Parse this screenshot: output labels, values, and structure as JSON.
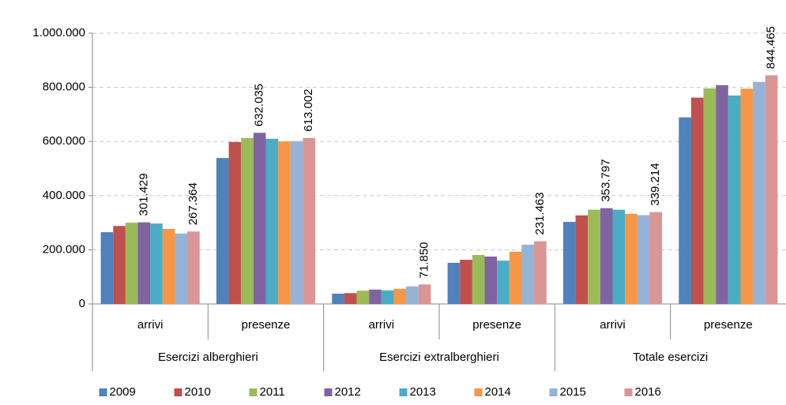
{
  "chart_data": {
    "type": "bar",
    "category_groups": [
      {
        "name": "Esercizi alberghieri",
        "categories": [
          "arrivi",
          "presenze"
        ]
      },
      {
        "name": "Esercizi extralberghieri",
        "categories": [
          "arrivi",
          "presenze"
        ]
      },
      {
        "name": "Totale esercizi",
        "categories": [
          "arrivi",
          "presenze"
        ]
      }
    ],
    "series": [
      {
        "name": "2009",
        "color": "#4f81bd",
        "values": [
          265000,
          539000,
          38000,
          152000,
          303000,
          689000
        ]
      },
      {
        "name": "2010",
        "color": "#c0504d",
        "values": [
          288000,
          598000,
          40000,
          163000,
          327000,
          762000
        ]
      },
      {
        "name": "2011",
        "color": "#9bbb59",
        "values": [
          300000,
          613000,
          49000,
          181000,
          348000,
          796000
        ]
      },
      {
        "name": "2012",
        "color": "#8064a2",
        "values": [
          301429,
          632035,
          53000,
          175000,
          353797,
          808000
        ],
        "value_labels": [
          "301.429",
          "632.035",
          null,
          null,
          "353.797",
          null
        ]
      },
      {
        "name": "2013",
        "color": "#4bacc6",
        "values": [
          297000,
          610000,
          50000,
          160000,
          348000,
          770000
        ]
      },
      {
        "name": "2014",
        "color": "#f79646",
        "values": [
          277000,
          600000,
          56000,
          193000,
          333000,
          795000
        ]
      },
      {
        "name": "2015",
        "color": "#95b3d7",
        "values": [
          260000,
          601000,
          65000,
          219000,
          328000,
          820000
        ]
      },
      {
        "name": "2016",
        "color": "#d99694",
        "values": [
          267364,
          613002,
          71850,
          231463,
          339214,
          844465
        ],
        "value_labels": [
          "267.364",
          "613.002",
          "71.850",
          "231.463",
          "339.214",
          "844.465"
        ]
      }
    ],
    "ylim": [
      0,
      1000000
    ],
    "yticks": [
      0,
      {
        "value": 200000,
        "label": "200.000"
      },
      {
        "value": 400000,
        "label": "400.000"
      },
      {
        "value": 600000,
        "label": "600.000"
      },
      {
        "value": 800000,
        "label": "800.000"
      },
      {
        "value": 1000000,
        "label": "1.000.000"
      }
    ],
    "grid": true,
    "legend": "bottom"
  }
}
